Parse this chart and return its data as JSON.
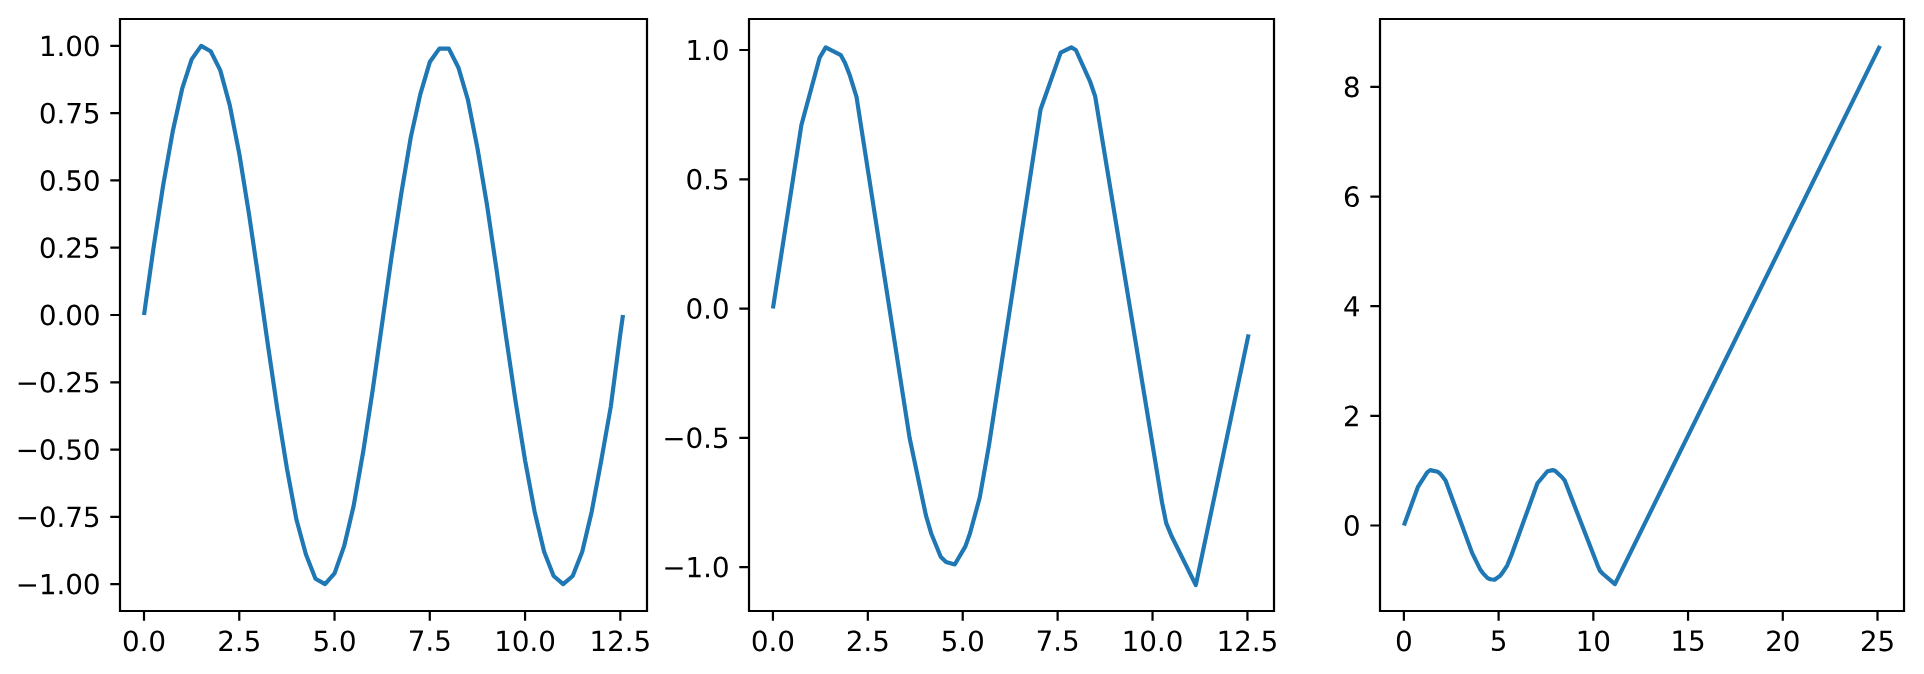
{
  "chart_data": [
    {
      "type": "line",
      "color": "#1f77b4",
      "x": [
        0,
        0.25,
        0.5,
        0.75,
        1.0,
        1.25,
        1.5,
        1.75,
        2.0,
        2.25,
        2.5,
        2.75,
        3.0,
        3.25,
        3.5,
        3.75,
        4.0,
        4.25,
        4.5,
        4.75,
        5.0,
        5.25,
        5.5,
        5.75,
        6.0,
        6.25,
        6.5,
        6.75,
        7.0,
        7.25,
        7.5,
        7.75,
        8.0,
        8.25,
        8.5,
        8.75,
        9.0,
        9.25,
        9.5,
        9.75,
        10.0,
        10.25,
        10.5,
        10.75,
        11.0,
        11.25,
        11.5,
        11.75,
        12.0,
        12.25,
        12.5,
        12.57
      ],
      "values": [
        0,
        0.25,
        0.48,
        0.68,
        0.84,
        0.95,
        1.0,
        0.98,
        0.91,
        0.78,
        0.6,
        0.38,
        0.14,
        -0.11,
        -0.35,
        -0.57,
        -0.76,
        -0.89,
        -0.98,
        -1.0,
        -0.96,
        -0.86,
        -0.71,
        -0.51,
        -0.28,
        -0.03,
        0.22,
        0.45,
        0.66,
        0.82,
        0.94,
        0.99,
        0.99,
        0.92,
        0.8,
        0.62,
        0.41,
        0.17,
        -0.08,
        -0.32,
        -0.54,
        -0.73,
        -0.88,
        -0.97,
        -1.0,
        -0.97,
        -0.88,
        -0.73,
        -0.54,
        -0.34,
        -0.07,
        0.0
      ],
      "xlim": [
        -0.63,
        13.2
      ],
      "ylim": [
        -1.1,
        1.1
      ],
      "xticks": [
        {
          "value": 0,
          "label": "0.0"
        },
        {
          "value": 2.5,
          "label": "2.5"
        },
        {
          "value": 5,
          "label": "5.0"
        },
        {
          "value": 7.5,
          "label": "7.5"
        },
        {
          "value": 10,
          "label": "10.0"
        },
        {
          "value": 12.5,
          "label": "12.5"
        }
      ],
      "yticks": [
        {
          "value": -1,
          "label": "−1.00"
        },
        {
          "value": -0.75,
          "label": "−0.75"
        },
        {
          "value": -0.5,
          "label": "−0.50"
        },
        {
          "value": -0.25,
          "label": "−0.25"
        },
        {
          "value": 0,
          "label": "0.00"
        },
        {
          "value": 0.25,
          "label": "0.25"
        },
        {
          "value": 0.5,
          "label": "0.50"
        },
        {
          "value": 0.75,
          "label": "0.75"
        },
        {
          "value": 1,
          "label": "1.00"
        }
      ]
    },
    {
      "type": "line",
      "color": "#1f77b4",
      "x": [
        0,
        0.75,
        1.23,
        1.39,
        1.79,
        1.9,
        2.03,
        2.2,
        3.6,
        4.03,
        4.17,
        4.42,
        4.56,
        4.79,
        5.07,
        5.19,
        5.45,
        5.69,
        7.05,
        7.58,
        7.86,
        7.98,
        8.35,
        8.49,
        10.25,
        10.36,
        10.5,
        11.14,
        12.53
      ],
      "values": [
        0,
        0.71,
        0.97,
        1.01,
        0.98,
        0.95,
        0.9,
        0.82,
        -0.5,
        -0.8,
        -0.87,
        -0.96,
        -0.98,
        -0.99,
        -0.92,
        -0.87,
        -0.73,
        -0.53,
        0.77,
        0.99,
        1.01,
        1.0,
        0.88,
        0.82,
        -0.75,
        -0.83,
        -0.88,
        -1.07,
        -0.1
      ],
      "xlim": [
        -0.63,
        13.2
      ],
      "ylim": [
        -1.17,
        1.12
      ],
      "xticks": [
        {
          "value": 0,
          "label": "0.0"
        },
        {
          "value": 2.5,
          "label": "2.5"
        },
        {
          "value": 5,
          "label": "5.0"
        },
        {
          "value": 7.5,
          "label": "7.5"
        },
        {
          "value": 10,
          "label": "10.0"
        },
        {
          "value": 12.5,
          "label": "12.5"
        }
      ],
      "yticks": [
        {
          "value": -1,
          "label": "−1.0"
        },
        {
          "value": -0.5,
          "label": "−0.5"
        },
        {
          "value": 0,
          "label": "0.0"
        },
        {
          "value": 0.5,
          "label": "0.5"
        },
        {
          "value": 1,
          "label": "1.0"
        }
      ]
    },
    {
      "type": "line",
      "color": "#1f77b4",
      "x": [
        0,
        0.75,
        1.23,
        1.39,
        1.79,
        1.9,
        2.03,
        2.2,
        3.6,
        4.03,
        4.17,
        4.42,
        4.56,
        4.79,
        5.07,
        5.19,
        5.45,
        5.69,
        7.05,
        7.58,
        7.86,
        7.98,
        8.35,
        8.49,
        10.25,
        10.36,
        10.5,
        11.14,
        25.13
      ],
      "values": [
        0,
        0.71,
        0.97,
        1.01,
        0.98,
        0.95,
        0.9,
        0.82,
        -0.5,
        -0.8,
        -0.87,
        -0.96,
        -0.98,
        -0.99,
        -0.92,
        -0.87,
        -0.73,
        -0.53,
        0.77,
        0.99,
        1.01,
        1.0,
        0.88,
        0.82,
        -0.75,
        -0.83,
        -0.88,
        -1.07,
        8.75
      ],
      "xlim": [
        -1.26,
        26.4
      ],
      "ylim": [
        -1.56,
        9.24
      ],
      "xticks": [
        0,
        5,
        10,
        15,
        20,
        25
      ],
      "yticks": [
        0,
        2,
        4,
        6,
        8
      ]
    }
  ]
}
